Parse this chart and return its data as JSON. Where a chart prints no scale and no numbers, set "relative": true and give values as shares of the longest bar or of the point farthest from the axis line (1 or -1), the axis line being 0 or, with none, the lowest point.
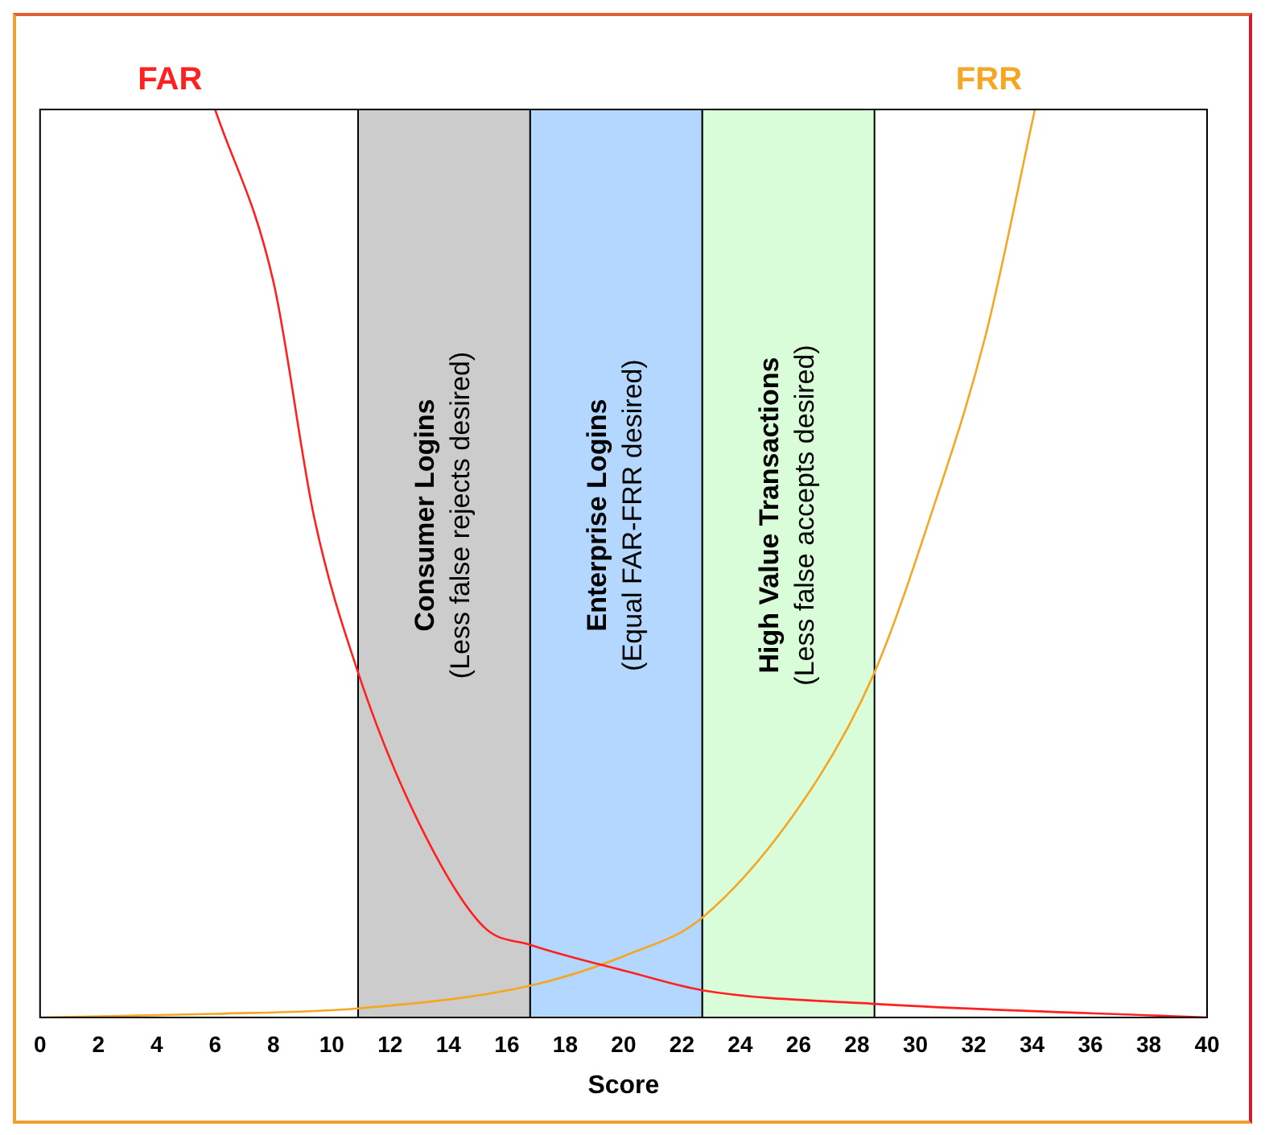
{
  "chart_data": {
    "type": "line",
    "relative": true,
    "xlabel": "Score",
    "xlim": [
      0,
      40
    ],
    "xticks": [
      0,
      2,
      4,
      6,
      8,
      10,
      12,
      14,
      16,
      18,
      20,
      22,
      24,
      26,
      28,
      30,
      32,
      34,
      36,
      38,
      40
    ],
    "grid": false,
    "legend": false,
    "marker": "none",
    "line_style": "solid",
    "series": [
      {
        "name": "FAR",
        "color": "#ff2020",
        "x": [
          6.0,
          8.0,
          9.4,
          10.9,
          12.9,
          15.2,
          16.8,
          20.2,
          22.7,
          28.6,
          40
        ],
        "values": [
          1.0,
          0.81,
          0.55,
          0.38,
          0.22,
          0.1,
          0.08,
          0.05,
          0.03,
          0.015,
          0.0
        ]
      },
      {
        "name": "FRR",
        "color": "#f5a623",
        "x": [
          0,
          6,
          10.9,
          16.8,
          20.2,
          22.7,
          26.4,
          28.6,
          30.5,
          32.4,
          34.1
        ],
        "values": [
          0.0,
          0.004,
          0.01,
          0.035,
          0.07,
          0.11,
          0.25,
          0.38,
          0.55,
          0.75,
          1.0
        ]
      }
    ],
    "bands": [
      {
        "axis": "x",
        "from": 10.9,
        "to": 16.8,
        "label": "Consumer Logins\n(Less false rejects desired)",
        "color": "#cccccc"
      },
      {
        "axis": "x",
        "from": 16.8,
        "to": 22.7,
        "label": "Enterprise Logins\n(Equal FAR-FRR desired)",
        "color": "#b3d7ff"
      },
      {
        "axis": "x",
        "from": 22.7,
        "to": 28.6,
        "label": "High Value Transactions\n(Less false accepts desired)",
        "color": "#d9fcd9"
      }
    ]
  }
}
